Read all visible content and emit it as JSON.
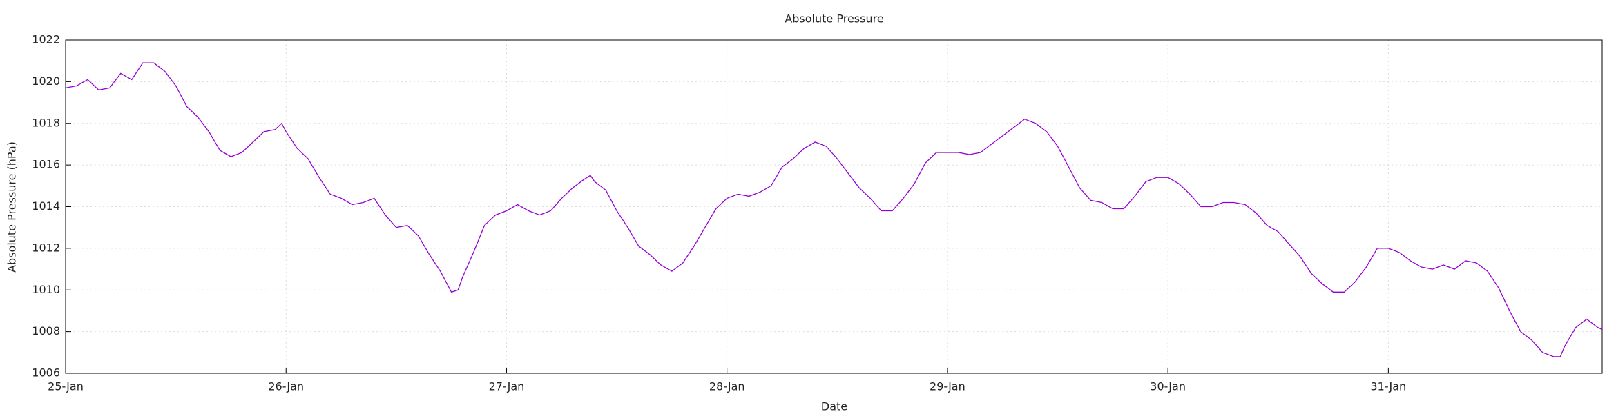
{
  "chart_data": {
    "type": "line",
    "title": "Absolute Pressure",
    "x_label": "Date",
    "y_label": "Absolute Pressure (hPa)",
    "xlim": [
      0,
      6.97
    ],
    "xticks": [
      {
        "value": 0,
        "label": "25-Jan"
      },
      {
        "value": 1,
        "label": "26-Jan"
      },
      {
        "value": 2,
        "label": "27-Jan"
      },
      {
        "value": 3,
        "label": "28-Jan"
      },
      {
        "value": 4,
        "label": "29-Jan"
      },
      {
        "value": 5,
        "label": "30-Jan"
      },
      {
        "value": 6,
        "label": "31-Jan"
      }
    ],
    "ylim": [
      1006,
      1022
    ],
    "yticks": [
      1006,
      1008,
      1010,
      1012,
      1014,
      1016,
      1018,
      1020,
      1022
    ],
    "grid": true,
    "x": [
      0,
      0.05,
      0.1,
      0.15,
      0.2,
      0.25,
      0.3,
      0.35,
      0.4,
      0.45,
      0.5,
      0.55,
      0.6,
      0.65,
      0.7,
      0.75,
      0.8,
      0.85,
      0.9,
      0.95,
      0.98,
      1,
      1.05,
      1.1,
      1.15,
      1.2,
      1.25,
      1.3,
      1.35,
      1.4,
      1.45,
      1.5,
      1.55,
      1.6,
      1.65,
      1.7,
      1.75,
      1.78,
      1.8,
      1.85,
      1.9,
      1.95,
      2,
      2.05,
      2.1,
      2.15,
      2.2,
      2.25,
      2.3,
      2.35,
      2.38,
      2.4,
      2.45,
      2.5,
      2.55,
      2.6,
      2.65,
      2.7,
      2.75,
      2.8,
      2.85,
      2.9,
      2.95,
      3,
      3.05,
      3.1,
      3.15,
      3.2,
      3.25,
      3.3,
      3.35,
      3.4,
      3.45,
      3.5,
      3.55,
      3.6,
      3.65,
      3.7,
      3.75,
      3.8,
      3.85,
      3.9,
      3.95,
      4,
      4.05,
      4.1,
      4.15,
      4.2,
      4.25,
      4.3,
      4.35,
      4.4,
      4.45,
      4.5,
      4.55,
      4.6,
      4.65,
      4.7,
      4.75,
      4.8,
      4.85,
      4.9,
      4.95,
      5,
      5.05,
      5.1,
      5.15,
      5.2,
      5.25,
      5.3,
      5.35,
      5.4,
      5.45,
      5.5,
      5.55,
      5.6,
      5.65,
      5.7,
      5.75,
      5.8,
      5.85,
      5.9,
      5.95,
      6,
      6.05,
      6.1,
      6.15,
      6.2,
      6.25,
      6.3,
      6.35,
      6.4,
      6.45,
      6.5,
      6.55,
      6.6,
      6.65,
      6.7,
      6.75,
      6.78,
      6.8,
      6.85,
      6.9,
      6.95,
      6.97
    ],
    "series": [
      {
        "name": "Absolute Pressure",
        "color": "#9400d3",
        "values": [
          1019.7,
          1019.8,
          1020.1,
          1019.6,
          1019.7,
          1020.4,
          1020.1,
          1020.9,
          1020.9,
          1020.5,
          1019.8,
          1018.8,
          1018.3,
          1017.6,
          1016.7,
          1016.4,
          1016.6,
          1017.1,
          1017.6,
          1017.7,
          1018.0,
          1017.6,
          1016.8,
          1016.3,
          1015.4,
          1014.6,
          1014.4,
          1014.1,
          1014.2,
          1014.4,
          1013.6,
          1013.0,
          1013.1,
          1012.6,
          1011.7,
          1010.9,
          1009.9,
          1010.0,
          1010.6,
          1011.8,
          1013.1,
          1013.6,
          1013.8,
          1014.1,
          1013.8,
          1013.6,
          1013.8,
          1014.4,
          1014.9,
          1015.3,
          1015.5,
          1015.2,
          1014.8,
          1013.8,
          1013.0,
          1012.1,
          1011.7,
          1011.2,
          1010.9,
          1011.3,
          1012.1,
          1013.0,
          1013.9,
          1014.4,
          1014.6,
          1014.5,
          1014.7,
          1015.0,
          1015.9,
          1016.3,
          1016.8,
          1017.1,
          1016.9,
          1016.3,
          1015.6,
          1014.9,
          1014.4,
          1013.8,
          1013.8,
          1014.4,
          1015.1,
          1016.1,
          1016.6,
          1016.6,
          1016.6,
          1016.5,
          1016.6,
          1017.0,
          1017.4,
          1017.8,
          1018.2,
          1018.0,
          1017.6,
          1016.9,
          1015.9,
          1014.9,
          1014.3,
          1014.2,
          1013.9,
          1013.9,
          1014.5,
          1015.2,
          1015.4,
          1015.4,
          1015.1,
          1014.6,
          1014.0,
          1014.0,
          1014.2,
          1014.2,
          1014.1,
          1013.7,
          1013.1,
          1012.8,
          1012.2,
          1011.6,
          1010.8,
          1010.3,
          1009.9,
          1009.9,
          1010.4,
          1011.1,
          1012.0,
          1012.0,
          1011.8,
          1011.4,
          1011.1,
          1011.0,
          1011.2,
          1011.0,
          1011.4,
          1011.3,
          1010.9,
          1010.1,
          1009.0,
          1008.0,
          1007.6,
          1007.0,
          1006.8,
          1006.8,
          1007.3,
          1008.2,
          1008.6,
          1008.2,
          1008.1
        ]
      }
    ]
  }
}
